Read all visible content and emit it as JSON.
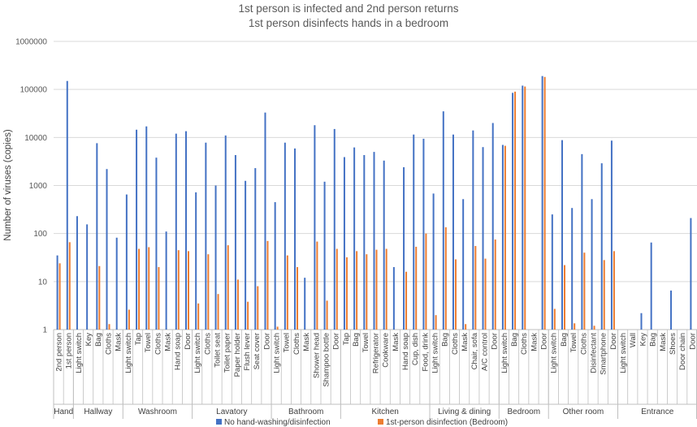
{
  "chart_data": {
    "type": "bar",
    "title_line1": "1st person is infected and 2nd person returns",
    "title_line2": "1st person disinfects hands in a bedroom",
    "ylabel": "Number of viruses (copies)",
    "yscale": "log",
    "ylim": [
      1,
      1000000
    ],
    "yticks": [
      "1",
      "10",
      "100",
      "1000",
      "10000",
      "100000",
      "1000000"
    ],
    "legend_position": "bottom",
    "series_names": [
      "No hand-washing/disinfection",
      "1st-person disinfection (Bedroom)"
    ],
    "colors": {
      "series1": "#4472C4",
      "series2": "#ED7D31",
      "grid": "#D9D9D9",
      "axis": "#BFBFBF"
    },
    "groups": [
      {
        "name": "Hand",
        "categories": [
          {
            "label": "2nd person",
            "v1": 35,
            "v2": 24
          },
          {
            "label": "1st person",
            "v1": 150000,
            "v2": 66
          }
        ]
      },
      {
        "name": "Hallway",
        "categories": [
          {
            "label": "Light switch",
            "v1": 230,
            "v2": null
          },
          {
            "label": "Key",
            "v1": 155,
            "v2": null
          },
          {
            "label": "Bag",
            "v1": 7600,
            "v2": 21
          },
          {
            "label": "Cloths",
            "v1": 2200,
            "v2": 1.3
          },
          {
            "label": "Mask",
            "v1": 82,
            "v2": null
          }
        ]
      },
      {
        "name": "Washroom",
        "categories": [
          {
            "label": "Light switch",
            "v1": 650,
            "v2": 2.6
          },
          {
            "label": "Tap",
            "v1": 14500,
            "v2": 48
          },
          {
            "label": "Towel",
            "v1": 17000,
            "v2": 52
          },
          {
            "label": "Cloths",
            "v1": 3800,
            "v2": 20
          },
          {
            "label": "Mask",
            "v1": 110,
            "v2": null
          },
          {
            "label": "Hand soap",
            "v1": 12000,
            "v2": 45
          },
          {
            "label": "Door",
            "v1": 13500,
            "v2": 43
          }
        ]
      },
      {
        "name": "Lavatory",
        "categories": [
          {
            "label": "Light switch",
            "v1": 720,
            "v2": 3.5
          },
          {
            "label": "Cloths",
            "v1": 7800,
            "v2": 37
          },
          {
            "label": "Toilet seat",
            "v1": 1000,
            "v2": 5.5
          },
          {
            "label": "Toilet paper",
            "v1": 11000,
            "v2": 57
          },
          {
            "label": "Paper holder",
            "v1": 4300,
            "v2": 11
          },
          {
            "label": "Flush lever",
            "v1": 1250,
            "v2": 3.8
          },
          {
            "label": "Seat cover",
            "v1": 2300,
            "v2": 8
          },
          {
            "label": "Door",
            "v1": 33000,
            "v2": 70
          }
        ]
      },
      {
        "name": "Bathroom",
        "categories": [
          {
            "label": "Light switch",
            "v1": 450,
            "v2": 1.15
          },
          {
            "label": "Towel",
            "v1": 7800,
            "v2": 35
          },
          {
            "label": "Cloths",
            "v1": 5900,
            "v2": 20
          },
          {
            "label": "Mask",
            "v1": 12,
            "v2": null
          },
          {
            "label": "Shower head",
            "v1": 18000,
            "v2": 68
          },
          {
            "label": "Shampoo bottle",
            "v1": 1200,
            "v2": 4
          },
          {
            "label": "Door",
            "v1": 15000,
            "v2": 48
          }
        ]
      },
      {
        "name": "Kitchen",
        "categories": [
          {
            "label": "Tap",
            "v1": 3900,
            "v2": 32
          },
          {
            "label": "Bag",
            "v1": 6200,
            "v2": 43
          },
          {
            "label": "Towel",
            "v1": 4300,
            "v2": 37
          },
          {
            "label": "Refrigerator",
            "v1": 5000,
            "v2": 46
          },
          {
            "label": "Cookware",
            "v1": 3300,
            "v2": 48
          },
          {
            "label": "Mask",
            "v1": 20,
            "v2": null
          },
          {
            "label": "Hand soap",
            "v1": 2400,
            "v2": 16
          },
          {
            "label": "Cup, dish",
            "v1": 11500,
            "v2": 53
          },
          {
            "label": "Food, drink",
            "v1": 9400,
            "v2": 100
          }
        ]
      },
      {
        "name": "Living & dining",
        "categories": [
          {
            "label": "Light switch",
            "v1": 680,
            "v2": 2
          },
          {
            "label": "Bag",
            "v1": 35000,
            "v2": 135
          },
          {
            "label": "Cloths",
            "v1": 11500,
            "v2": 29
          },
          {
            "label": "Mask",
            "v1": 520,
            "v2": 1.3
          },
          {
            "label": "Chair, sofa",
            "v1": 14000,
            "v2": 55
          },
          {
            "label": "A/C control",
            "v1": 6300,
            "v2": 30
          },
          {
            "label": "Door",
            "v1": 20000,
            "v2": 75
          }
        ]
      },
      {
        "name": "Bedroom",
        "categories": [
          {
            "label": "Light switch",
            "v1": 7000,
            "v2": 6700
          },
          {
            "label": "Bag",
            "v1": 85000,
            "v2": 90000
          },
          {
            "label": "Cloths",
            "v1": 120000,
            "v2": 115000
          },
          {
            "label": "Mask",
            "v1": null,
            "v2": null
          },
          {
            "label": "Door",
            "v1": 190000,
            "v2": 182000
          }
        ]
      },
      {
        "name": "Other room",
        "categories": [
          {
            "label": "Light switch",
            "v1": 250,
            "v2": 2.7
          },
          {
            "label": "Bag",
            "v1": 8800,
            "v2": 22
          },
          {
            "label": "Towel",
            "v1": 340,
            "v2": 1.35
          },
          {
            "label": "Cloths",
            "v1": 4500,
            "v2": 40
          },
          {
            "label": "Disinfectant",
            "v1": 520,
            "v2": 1.2
          },
          {
            "label": "Smartphone",
            "v1": 2900,
            "v2": 28
          },
          {
            "label": "Door",
            "v1": 8600,
            "v2": 43
          }
        ]
      },
      {
        "name": "Entrance",
        "categories": [
          {
            "label": "Light switch",
            "v1": null,
            "v2": null
          },
          {
            "label": "Wall",
            "v1": null,
            "v2": null
          },
          {
            "label": "Key",
            "v1": 2.2,
            "v2": null
          },
          {
            "label": "Bag",
            "v1": 65,
            "v2": null
          },
          {
            "label": "Mask",
            "v1": null,
            "v2": null
          },
          {
            "label": "Shoes",
            "v1": 6.5,
            "v2": null
          },
          {
            "label": "Door chain",
            "v1": null,
            "v2": null
          },
          {
            "label": "Door",
            "v1": 210,
            "v2": null
          }
        ]
      }
    ]
  }
}
